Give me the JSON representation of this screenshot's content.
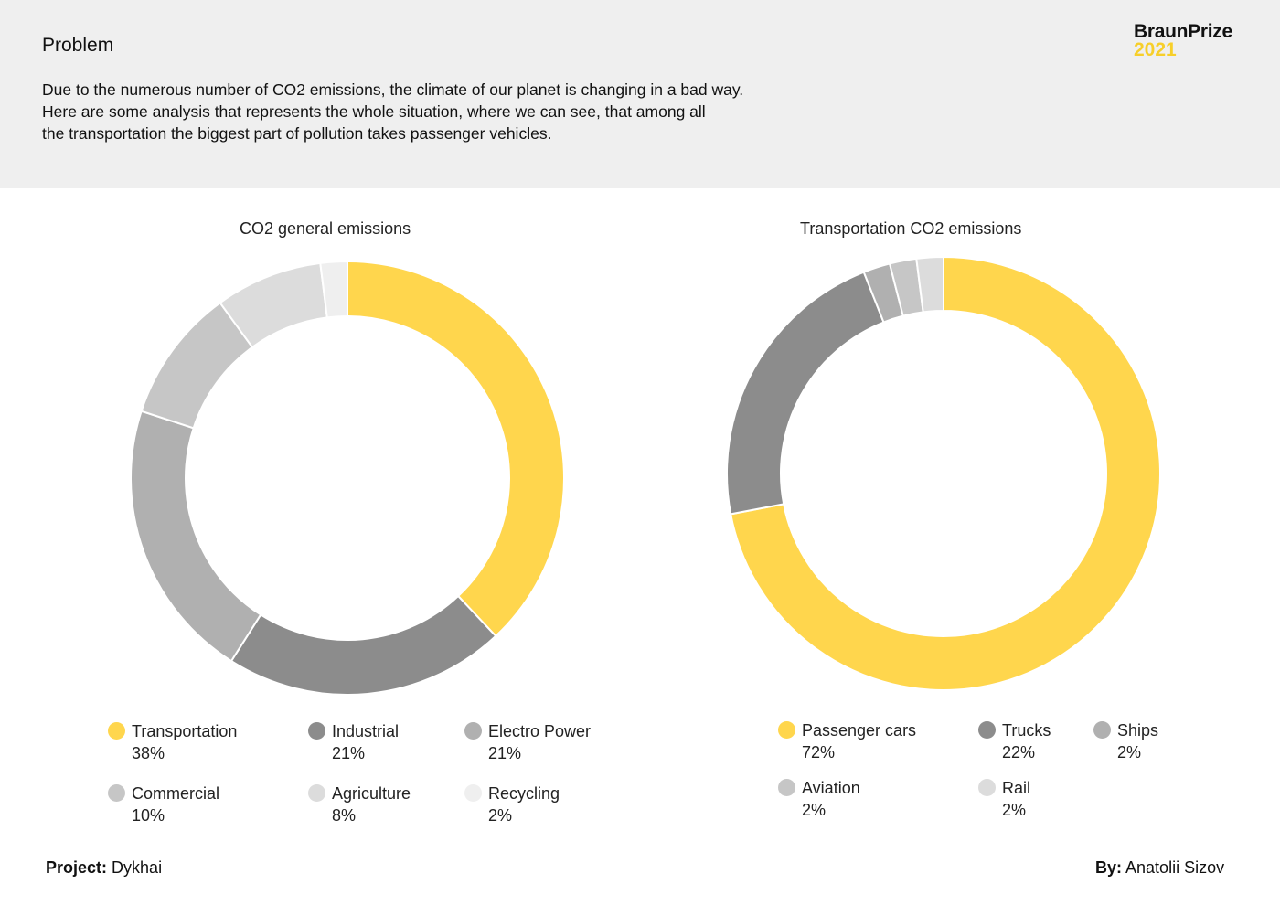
{
  "header": {
    "title": "Problem",
    "intro_lines": [
      "Due to the numerous number of CO2 emissions, the climate of our planet is changing in a bad way.",
      "Here are some analysis that represents the whole situation, where we can see, that among all",
      "the transportation the biggest part of pollution takes passenger vehicles."
    ],
    "brand_name": "BraunPrize",
    "brand_year": "2021"
  },
  "chart_data": [
    {
      "type": "pie",
      "donut": true,
      "title": "CO2 general emissions",
      "categories": [
        "Transportation",
        "Industrial",
        "Electro Power",
        "Commercial",
        "Agriculture",
        "Recycling"
      ],
      "values": [
        38,
        21,
        21,
        10,
        8,
        2
      ],
      "value_labels": [
        "38%",
        "21%",
        "21%",
        "10%",
        "8%",
        "2%"
      ],
      "colors": [
        "#ffd64d",
        "#8c8c8c",
        "#b0b0b0",
        "#c6c6c6",
        "#dcdcdc",
        "#efefef"
      ],
      "legend_position": "bottom"
    },
    {
      "type": "pie",
      "donut": true,
      "title": "Transportation CO2 emissions",
      "categories": [
        "Passenger cars",
        "Trucks",
        "Ships",
        "Aviation",
        "Rail"
      ],
      "values": [
        72,
        22,
        2,
        2,
        2
      ],
      "value_labels": [
        "72%",
        "22%",
        "2%",
        "2%",
        "2%"
      ],
      "colors": [
        "#ffd64d",
        "#8c8c8c",
        "#b0b0b0",
        "#c6c6c6",
        "#dcdcdc"
      ],
      "legend_position": "bottom"
    }
  ],
  "footer": {
    "project_label": "Project:",
    "project_value": "Dykhai",
    "author_label": "By:",
    "author_value": "Anatolii Sizov"
  }
}
